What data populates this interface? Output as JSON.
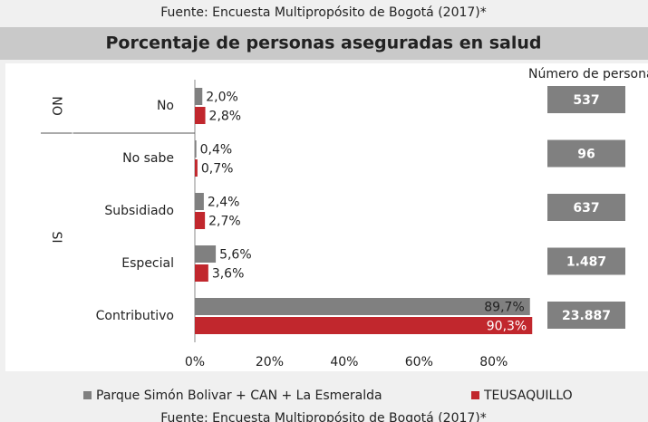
{
  "source": "Fuente: Encuesta Multipropósito de Bogotá (2017)*",
  "chart_data": {
    "type": "hbar",
    "title": "Porcentaje de personas aseguradas en salud",
    "categories": [
      "No",
      "No sabe",
      "Subsidiado",
      "Especial",
      "Contributivo"
    ],
    "groups": [
      {
        "label": "NO",
        "categories": [
          0
        ]
      },
      {
        "label": "SI",
        "categories": [
          1,
          2,
          3,
          4
        ]
      }
    ],
    "series": [
      {
        "name": "Parque Simón Bolivar + CAN + La Esmeralda",
        "color": "#808080",
        "values": [
          2.0,
          0.4,
          2.4,
          5.6,
          89.7
        ],
        "value_labels": [
          "2,0%",
          "0,4%",
          "2,4%",
          "5,6%",
          "89,7%"
        ]
      },
      {
        "name": "TEUSAQUILLO",
        "color": "#c1272d",
        "values": [
          2.8,
          0.7,
          2.7,
          3.6,
          90.3
        ],
        "value_labels": [
          "2,8%",
          "0,7%",
          "2,7%",
          "3,6%",
          "90,3%"
        ]
      }
    ],
    "xlim": [
      0,
      90
    ],
    "xticks": [
      {
        "value": 0,
        "label": "0%"
      },
      {
        "value": 20,
        "label": "20%"
      },
      {
        "value": 40,
        "label": "40%"
      },
      {
        "value": 60,
        "label": "60%"
      },
      {
        "value": 80,
        "label": "80%"
      }
    ],
    "personas": {
      "title": "Número de personas",
      "color": "#808080",
      "values": [
        537,
        96,
        637,
        1487,
        23887
      ],
      "value_labels": [
        "537",
        "96",
        "637",
        "1.487",
        "23.887"
      ]
    },
    "legend": "bottom"
  }
}
